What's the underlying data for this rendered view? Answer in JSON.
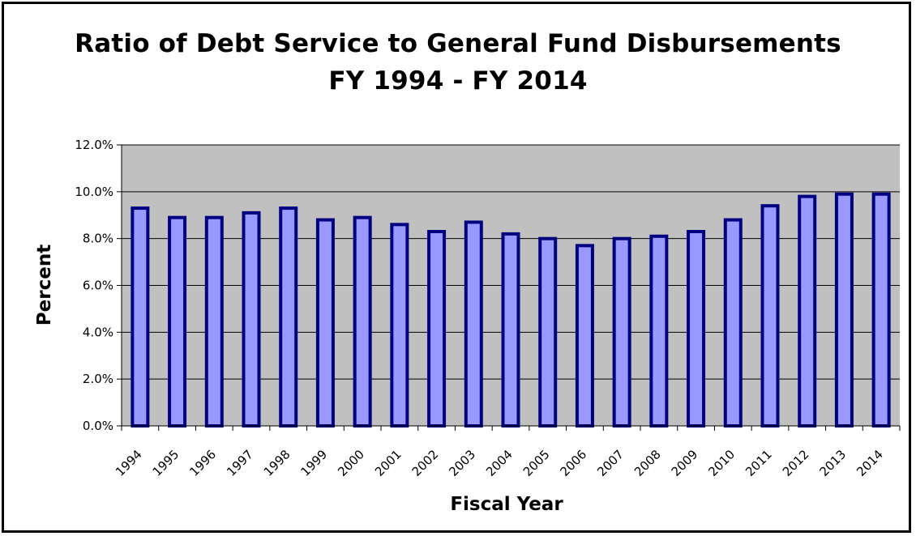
{
  "chart_data": {
    "type": "bar",
    "title": "Ratio of Debt Service to General Fund Disbursements",
    "subtitle": "FY 1994 - FY 2014",
    "xlabel": "Fiscal Year",
    "ylabel": "Percent",
    "ylim": [
      0,
      12
    ],
    "yticks": [
      "0.0%",
      "2.0%",
      "4.0%",
      "6.0%",
      "8.0%",
      "10.0%",
      "12.0%"
    ],
    "grid": true,
    "legend": "none",
    "categories": [
      "1994",
      "1995",
      "1996",
      "1997",
      "1998",
      "1999",
      "2000",
      "2001",
      "2002",
      "2003",
      "2004",
      "2005",
      "2006",
      "2007",
      "2008",
      "2009",
      "2010",
      "2011",
      "2012",
      "2013",
      "2014"
    ],
    "values": [
      9.3,
      8.9,
      8.9,
      9.1,
      9.3,
      8.8,
      8.9,
      8.6,
      8.3,
      8.7,
      8.2,
      8.0,
      7.7,
      8.0,
      8.1,
      8.3,
      8.8,
      9.4,
      9.8,
      9.9,
      9.9
    ],
    "colors": {
      "bar_fill": "#9999ff",
      "bar_stroke": "#000080",
      "plot_bg": "#c0c0c0",
      "gridline": "#000000"
    }
  }
}
